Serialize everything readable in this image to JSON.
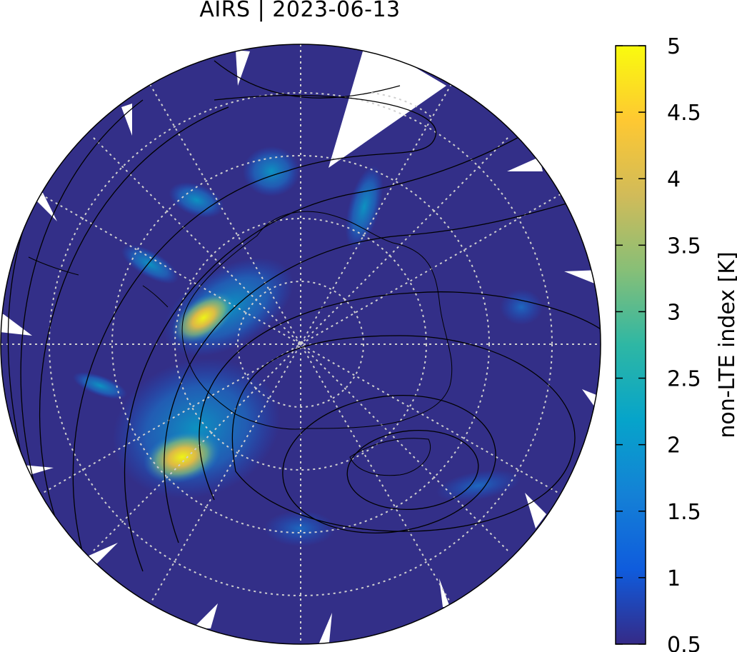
{
  "title": "AIRS | 2023-06-13",
  "map": {
    "projection": "polar stereographic (south pole)",
    "background_color": "#332f88",
    "gridlines": "dotted, light grey",
    "coastlines": "black",
    "contours": "black"
  },
  "colorbar": {
    "label": "non-LTE index [K]",
    "min": 0.5,
    "max": 5,
    "ticks": [
      "0.5",
      "1",
      "1.5",
      "2",
      "2.5",
      "3",
      "3.5",
      "4",
      "4.5",
      "5"
    ],
    "colormap": [
      "#352a87",
      "#0f5cdd",
      "#1481d6",
      "#06a4ca",
      "#2eb7a4",
      "#87bf77",
      "#d1bb59",
      "#fec832",
      "#f9fb0e"
    ]
  }
}
